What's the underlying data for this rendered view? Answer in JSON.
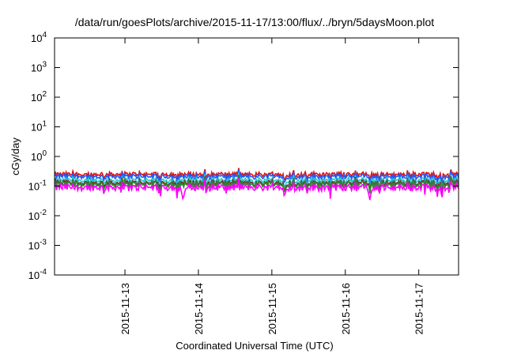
{
  "chart_data": {
    "type": "line",
    "title": "/data/run/goesPlots/archive/2015-11-17/13:00/flux/../bryn/5daysMoon.plot",
    "xlabel": "Coordinated Universal Time (UTC)",
    "ylabel": "cGy/day",
    "yscale": "log",
    "ylim": [
      0.0001,
      10000
    ],
    "yticks": [
      {
        "exp": "-4"
      },
      {
        "exp": "-3"
      },
      {
        "exp": "-2"
      },
      {
        "exp": "-1"
      },
      {
        "exp": "0"
      },
      {
        "exp": "1"
      },
      {
        "exp": "2"
      },
      {
        "exp": "3"
      },
      {
        "exp": "4"
      }
    ],
    "ytick_base": "10",
    "xlim": [
      "2015-11-12T01:00",
      "2015-11-17T13:00"
    ],
    "xticks": [
      "2015-11-13",
      "2015-11-14",
      "2015-11-15",
      "2015-11-16",
      "2015-11-17"
    ],
    "grid": false,
    "legend": "none",
    "series": [
      {
        "color": "#e01010",
        "level": 0.25,
        "dips": []
      },
      {
        "color": "#1e5cff",
        "level": 0.21,
        "dips": []
      },
      {
        "color": "#22cccc",
        "level": 0.155,
        "dips": []
      },
      {
        "color": "#7a2a2a",
        "level": 0.128,
        "dips": []
      },
      {
        "color": "#2a8a2a",
        "level": 0.115,
        "dips": []
      },
      {
        "color": "#ff00ff",
        "level": 0.09,
        "dips": [
          {
            "t": "2015-11-13T19:00",
            "value": 0.032
          },
          {
            "t": "2015-11-16T08:00",
            "value": 0.033
          }
        ]
      }
    ]
  }
}
